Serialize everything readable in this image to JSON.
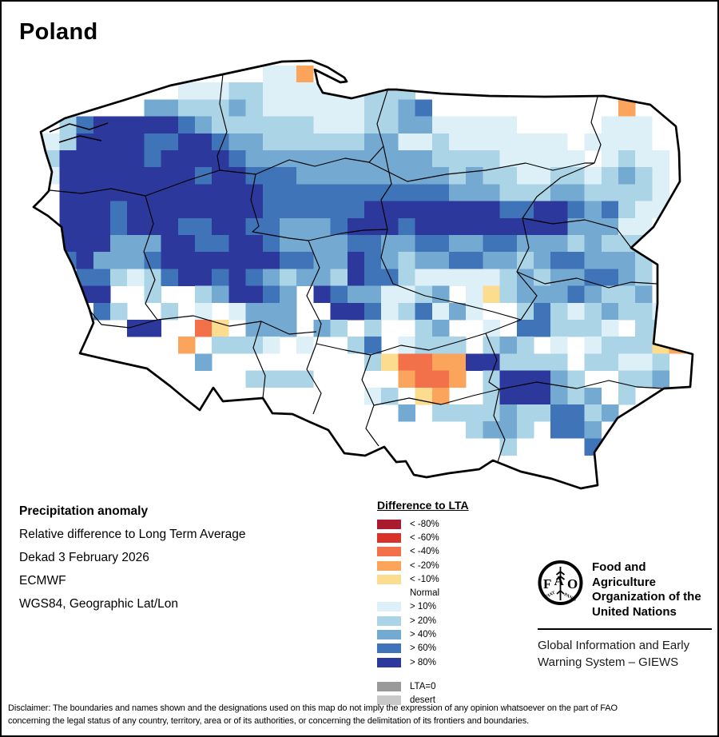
{
  "title": "Poland",
  "info": {
    "heading": "Precipitation anomaly",
    "lines": [
      "Relative difference to Long Term Average",
      "Dekad 3 February 2026",
      "ECMWF",
      "WGS84, Geographic Lat/Lon"
    ]
  },
  "legend": {
    "title": "Difference to LTA",
    "entries": [
      {
        "label": "< -80%",
        "color": "#a91b2e"
      },
      {
        "label": "< -60%",
        "color": "#d93228"
      },
      {
        "label": "< -40%",
        "color": "#f2704a"
      },
      {
        "label": "< -20%",
        "color": "#fba45c"
      },
      {
        "label": "< -10%",
        "color": "#fcdc8e"
      },
      {
        "label": "Normal",
        "color": "#ffffff"
      },
      {
        "label": "> 10%",
        "color": "#ddeff7"
      },
      {
        "label": "> 20%",
        "color": "#abd4e7"
      },
      {
        "label": "> 40%",
        "color": "#74aad2"
      },
      {
        "label": "> 60%",
        "color": "#3f74b8"
      },
      {
        "label": "> 80%",
        "color": "#2c389b"
      }
    ],
    "extra": [
      {
        "label": "LTA=0",
        "color": "#9a9a9a"
      },
      {
        "label": "desert",
        "color": "#c9c9c9"
      }
    ]
  },
  "map": {
    "cell_size": 21.2,
    "palette": {
      "1": "#ddeff7",
      "2": "#abd4e7",
      "4": "#74aad2",
      "6": "#3f74b8",
      "8": "#2c389b",
      "a": "#fcdc8e",
      "b": "#fba45c",
      "c": "#f2704a",
      "d": "#d93228",
      "e": "#a91b2e"
    },
    "grid_rows": [
      "..............11b.......................",
      ".........11122111111222.................",
      ".......44222421111112246...........b....",
      "..268888864222222111224411111.....111...",
      ".1288886688644222222441121111111.1111...",
      "128888868888644444444444222211111.1211..",
      ".1888888886886664444444442422112212421..",
      "..888888888888666666666664442224422221..",
      "..888688888888666666888888886688646211..",
      "..88868886688664446888688888888844411...",
      "..88844488668864444664466446644424222...",
      "..68444688888886644864244664424664442...",
      "...6621268868642442866211111242446642...",
      "...88..2..248864.86441124.1a244464224...",
      "....62..2.1.1444..886126141..262124221..",
      "......88..ca.444.42.2..24..1.662221.22..",
      ".........b.2221.1..26.1222.242.1.1222ab.",
      "..........4.........2accbb882222.22112..",
      ".............2222.....bccb.288842..224..",
      "....................12.ab..2888424.2....",
      "......................4.22224226624.....",
      "..........................2442.664......",
      "............................2....64.....",
      "..................................46....",
      "...................................6...."
    ]
  },
  "fao": {
    "logo_letters": "FAO",
    "motto": [
      "FIAT",
      "PANIS"
    ],
    "org_lines": [
      "Food and Agriculture",
      "Organization of the",
      "United Nations"
    ],
    "giews_lines": [
      "Global Information and Early",
      "Warning System – GIEWS"
    ]
  },
  "disclaimer": [
    "Disclaimer: The boundaries and names shown and the designations used on this map do not imply the expression of any opinion whatsoever on the part of FAO",
    "concerning the legal status of any country, territory, area or of its authorities, or concerning the delimitation of its frontiers and boundaries."
  ]
}
